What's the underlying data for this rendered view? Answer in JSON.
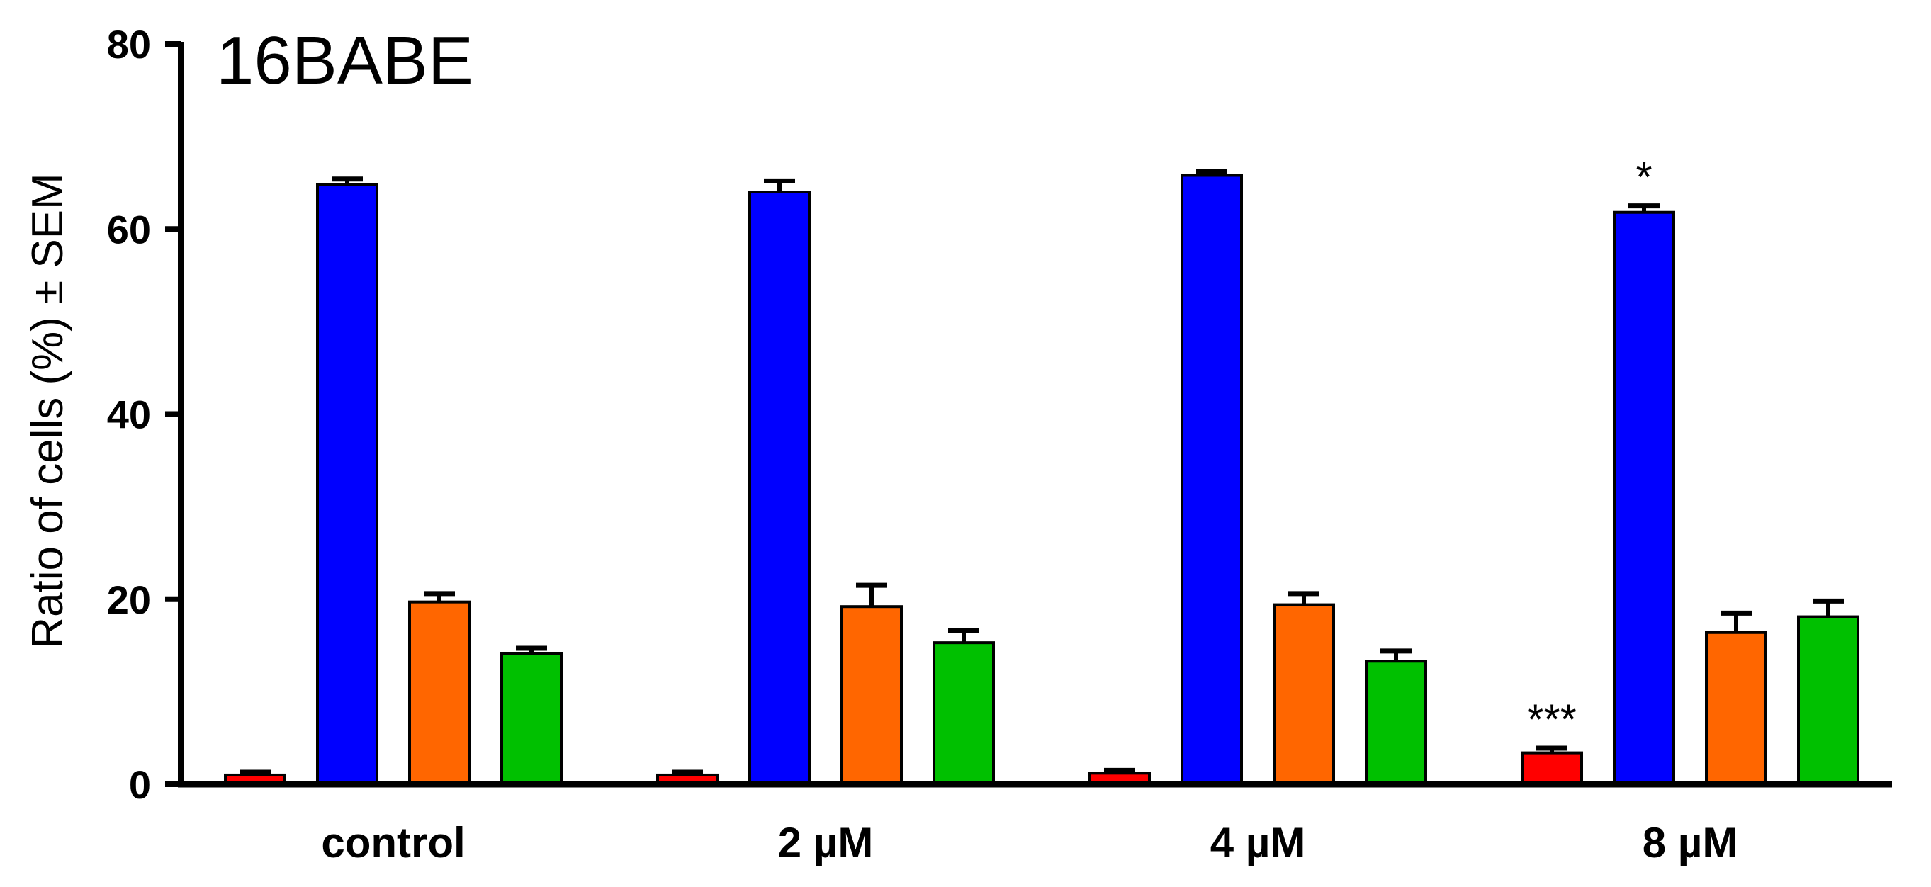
{
  "chart_data": {
    "type": "bar",
    "title": "16BABE",
    "xlabel": "",
    "ylabel": "Ratio of cells (%) ± SEM",
    "ylim": [
      0,
      80
    ],
    "yticks": [
      "0",
      "20",
      "40",
      "60",
      "80"
    ],
    "categories": [
      "control",
      "2 µM",
      "4 µM",
      "8 µM"
    ],
    "legend": "none",
    "grid": false,
    "series": [
      {
        "color": "#ff0000",
        "values": [
          1.0,
          1.0,
          1.2,
          3.4
        ],
        "errors": [
          0.3,
          0.3,
          0.3,
          0.5
        ],
        "annotations": [
          "",
          "",
          "",
          "***"
        ]
      },
      {
        "color": "#0000ff",
        "values": [
          64.8,
          64.0,
          65.8,
          61.8
        ],
        "errors": [
          0.6,
          1.2,
          0.4,
          0.7
        ],
        "annotations": [
          "",
          "",
          "",
          "*"
        ]
      },
      {
        "color": "#ff6600",
        "values": [
          19.7,
          19.2,
          19.4,
          16.4
        ],
        "errors": [
          0.9,
          2.3,
          1.2,
          2.1
        ],
        "annotations": [
          "",
          "",
          "",
          ""
        ]
      },
      {
        "color": "#00c000",
        "values": [
          14.1,
          15.3,
          13.3,
          18.1
        ],
        "errors": [
          0.6,
          1.3,
          1.1,
          1.7
        ],
        "annotations": [
          "",
          "",
          "",
          ""
        ]
      }
    ]
  }
}
